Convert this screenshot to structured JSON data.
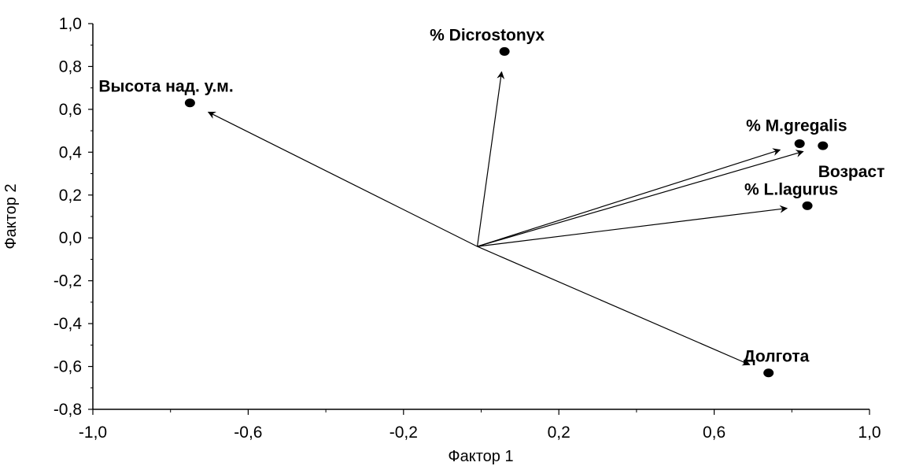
{
  "chart_data": {
    "type": "scatter",
    "title": "",
    "xlabel": "Фактор 1",
    "ylabel": "Фактор 2",
    "xlim": [
      -1.0,
      1.0
    ],
    "ylim": [
      -0.8,
      1.0
    ],
    "x_ticks": [
      "-1,0",
      "-0,6",
      "-0,2",
      "0,2",
      "0,6",
      "1,0"
    ],
    "y_ticks": [
      "1,0",
      "0,8",
      "0,6",
      "0,4",
      "0,2",
      "0,0",
      "-0,2",
      "-0,4",
      "-0,6",
      "-0,8"
    ],
    "grid": false,
    "vector_origin": [
      -0.01,
      -0.04
    ],
    "points": [
      {
        "label": "% Dicrostonyx",
        "x": 0.06,
        "y": 0.87
      },
      {
        "label": "Высота над. у.м.",
        "x": -0.75,
        "y": 0.63
      },
      {
        "label": "% M.gregalis",
        "x": 0.82,
        "y": 0.44
      },
      {
        "label": "Возраст",
        "x": 0.88,
        "y": 0.43
      },
      {
        "label": "% L.lagurus",
        "x": 0.84,
        "y": 0.15
      },
      {
        "label": "Долгота",
        "x": 0.74,
        "y": -0.63
      }
    ]
  }
}
